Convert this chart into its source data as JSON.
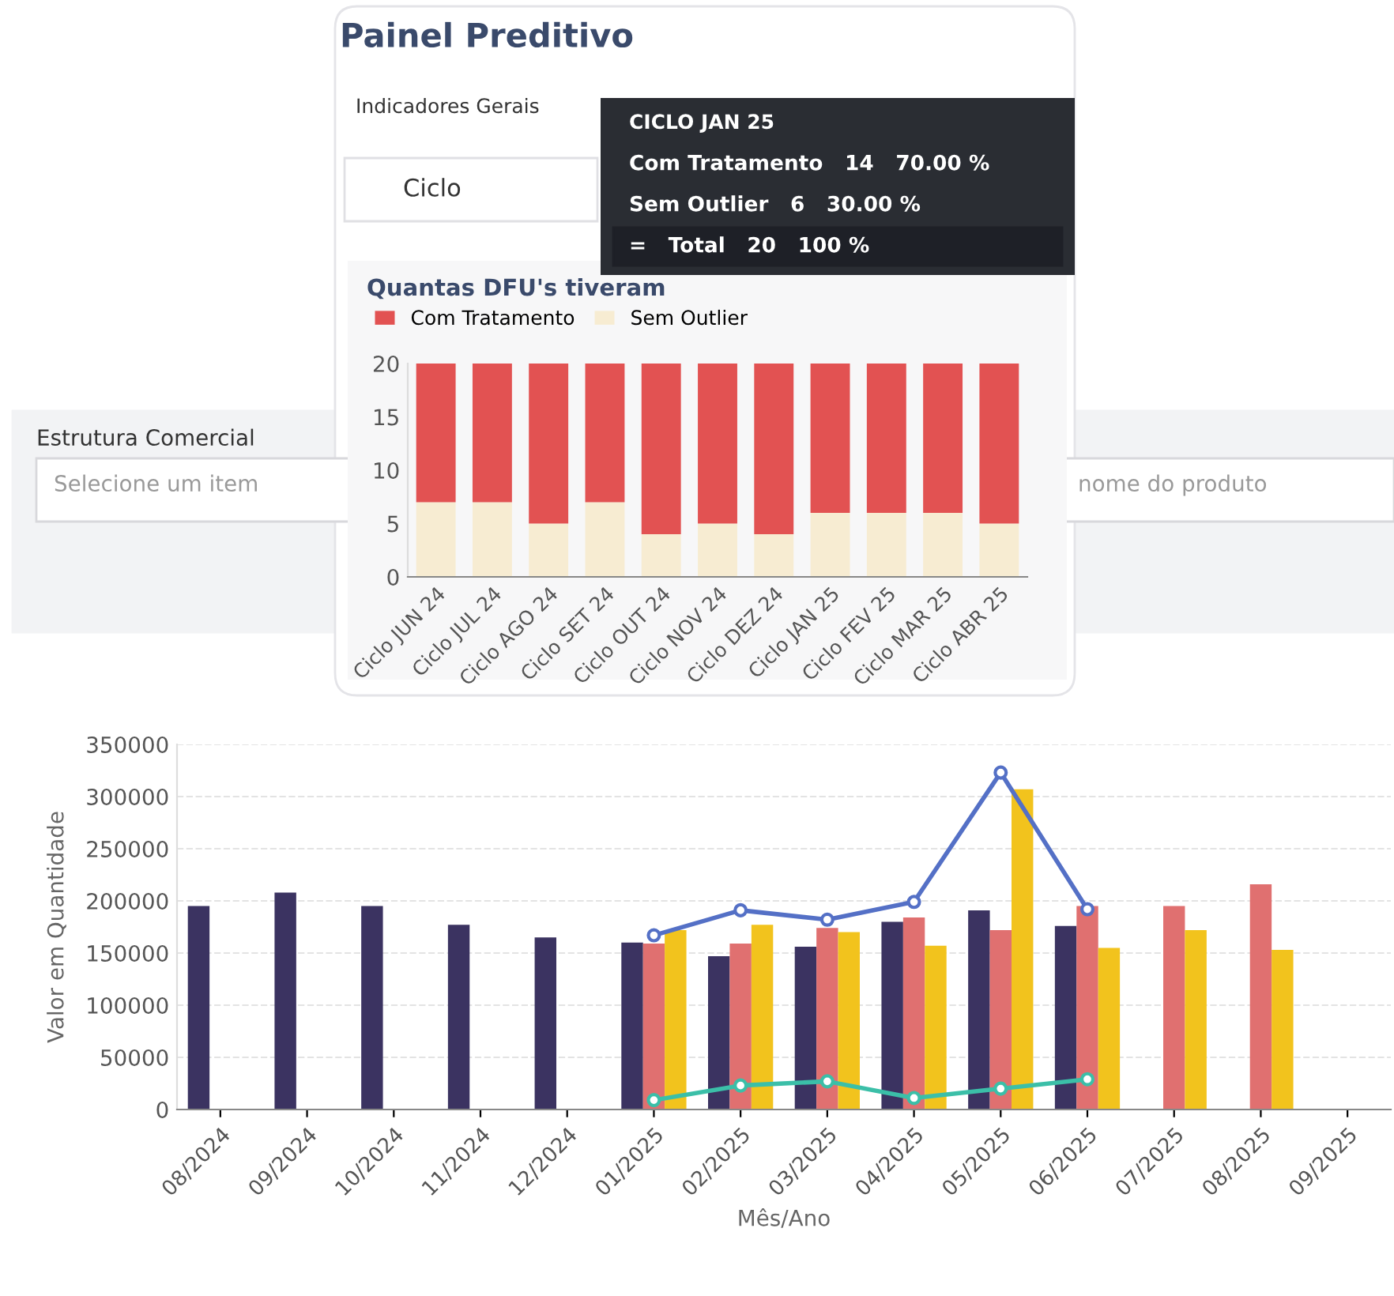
{
  "chart_data": [
    {
      "type": "other",
      "title": "Painel Preditivo",
      "annotations": [
        "Indicadores Gerais",
        "Ciclo",
        "Estrutura Comercial",
        "Selecione um item",
        "nome do produto"
      ]
    },
    {
      "type": "bar",
      "title": "Quantas DFU's tiveram",
      "stacked": true,
      "legend": "top left",
      "categories": [
        "Ciclo JUN 24",
        "Ciclo JUL 24",
        "Ciclo AGO 24",
        "Ciclo SET 24",
        "Ciclo OUT 24",
        "Ciclo NOV 24",
        "Ciclo DEZ 24",
        "Ciclo JAN 25",
        "Ciclo FEV 25",
        "Ciclo MAR 25",
        "Ciclo ABR 25"
      ],
      "series": [
        {
          "name": "Sem Outlier",
          "color": "#f7ecd2",
          "values": [
            7,
            7,
            5,
            7,
            4,
            5,
            4,
            6,
            6,
            6,
            5
          ]
        },
        {
          "name": "Com Tratamento",
          "color": "#e25252",
          "values": [
            13,
            13,
            15,
            13,
            16,
            15,
            16,
            14,
            14,
            14,
            15
          ]
        }
      ],
      "ylim": [
        0,
        20
      ],
      "yticks": [
        0,
        5,
        10,
        15,
        20
      ],
      "grid": false,
      "annotations": [
        "CICLO JAN 25",
        "Com Tratamento   14   70.00 %",
        "Sem Outlier   6   30.00 %",
        "=   Total   20   100 %"
      ]
    },
    {
      "type": "bar",
      "xlabel": "Mês/Ano",
      "ylabel": "Valor em Quantidade",
      "categories": [
        "08/2024",
        "09/2024",
        "10/2024",
        "11/2024",
        "12/2024",
        "01/2025",
        "02/2025",
        "03/2025",
        "04/2025",
        "05/2025",
        "06/2025",
        "07/2025",
        "08/2025",
        "09/2025"
      ],
      "series": [
        {
          "color": "#3b3361",
          "values": [
            195000,
            208000,
            195000,
            177000,
            165000,
            160000,
            147000,
            156000,
            180000,
            191000,
            176000,
            null,
            null,
            null
          ]
        },
        {
          "color": "#e07070",
          "values": [
            null,
            null,
            null,
            null,
            null,
            159000,
            159000,
            174000,
            184000,
            172000,
            195000,
            195000,
            216000,
            null
          ]
        },
        {
          "color": "#f2c31d",
          "values": [
            null,
            null,
            null,
            null,
            null,
            172000,
            177000,
            170000,
            157000,
            307000,
            155000,
            172000,
            153000,
            null
          ]
        },
        {
          "type": "line",
          "color": "#5470c6",
          "values": [
            null,
            null,
            null,
            null,
            null,
            167000,
            191000,
            182000,
            199000,
            323000,
            192000,
            null,
            null,
            null
          ]
        },
        {
          "type": "line",
          "color": "#3bbfa8",
          "values": [
            null,
            null,
            null,
            null,
            null,
            9000,
            23000,
            27000,
            11000,
            20000,
            29000,
            null,
            null,
            null
          ]
        }
      ],
      "ylim": [
        0,
        350000
      ],
      "yticks": [
        0,
        50000,
        100000,
        150000,
        200000,
        250000,
        300000,
        350000
      ],
      "grid": "y",
      "marker": "circle"
    }
  ]
}
